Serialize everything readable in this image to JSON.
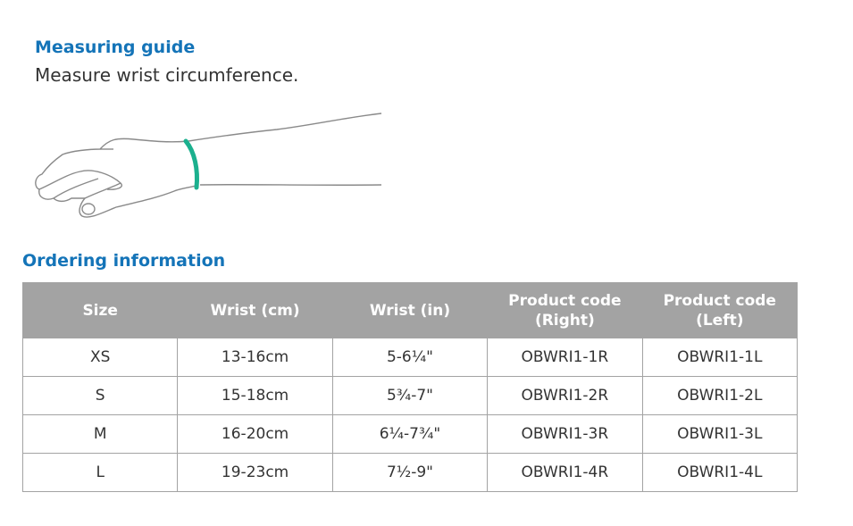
{
  "measuring": {
    "title": "Measuring guide",
    "subtitle": "Measure wrist circumference."
  },
  "ordering": {
    "title": "Ordering information",
    "headers": [
      "Size",
      "Wrist (cm)",
      "Wrist (in)",
      "Product code (Right)",
      "Product code (Left)"
    ],
    "rows": [
      [
        "XS",
        "13-16cm",
        "5-6¼\"",
        "OBWRI1-1R",
        "OBWRI1-1L"
      ],
      [
        "S",
        "15-18cm",
        "5¾-7\"",
        "OBWRI1-2R",
        "OBWRI1-2L"
      ],
      [
        "M",
        "16-20cm",
        "6¼-7¾\"",
        "OBWRI1-3R",
        "OBWRI1-3L"
      ],
      [
        "L",
        "19-23cm",
        "7½-9\"",
        "OBWRI1-4R",
        "OBWRI1-4L"
      ]
    ]
  },
  "colors": {
    "heading": "#1474b8",
    "band": "#1bb08e",
    "header_bg": "#a3a3a3"
  }
}
